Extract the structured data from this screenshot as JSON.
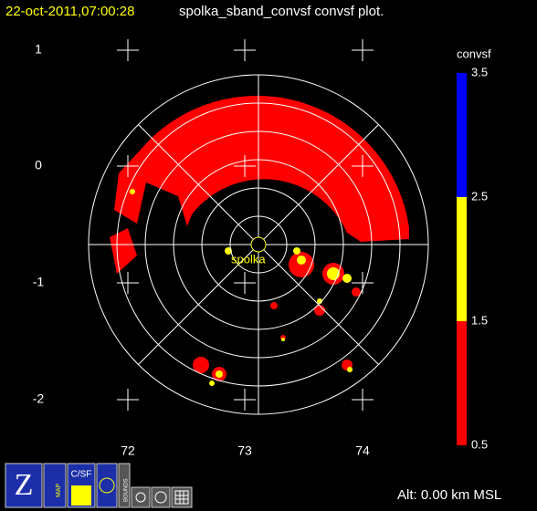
{
  "header": {
    "time": "22-oct-2011,07:00:28",
    "title": "spolka_sband_convsf convsf  plot."
  },
  "plot": {
    "y_labels": [
      "1",
      "0",
      "-1",
      "-2"
    ],
    "x_labels": [
      "72",
      "73",
      "74"
    ],
    "site": "spolka"
  },
  "colorbar": {
    "title": "convsf",
    "labels": [
      "3.5",
      "2.5",
      "1.5",
      "0.5"
    ],
    "colors": [
      "#0000ff",
      "#ffff00",
      "#ff0000"
    ]
  },
  "toolbar": {
    "map": "MAP",
    "csf": "C/SF",
    "bounds": "BOUNDS"
  },
  "status": "Alt: 0.00 km MSL"
}
